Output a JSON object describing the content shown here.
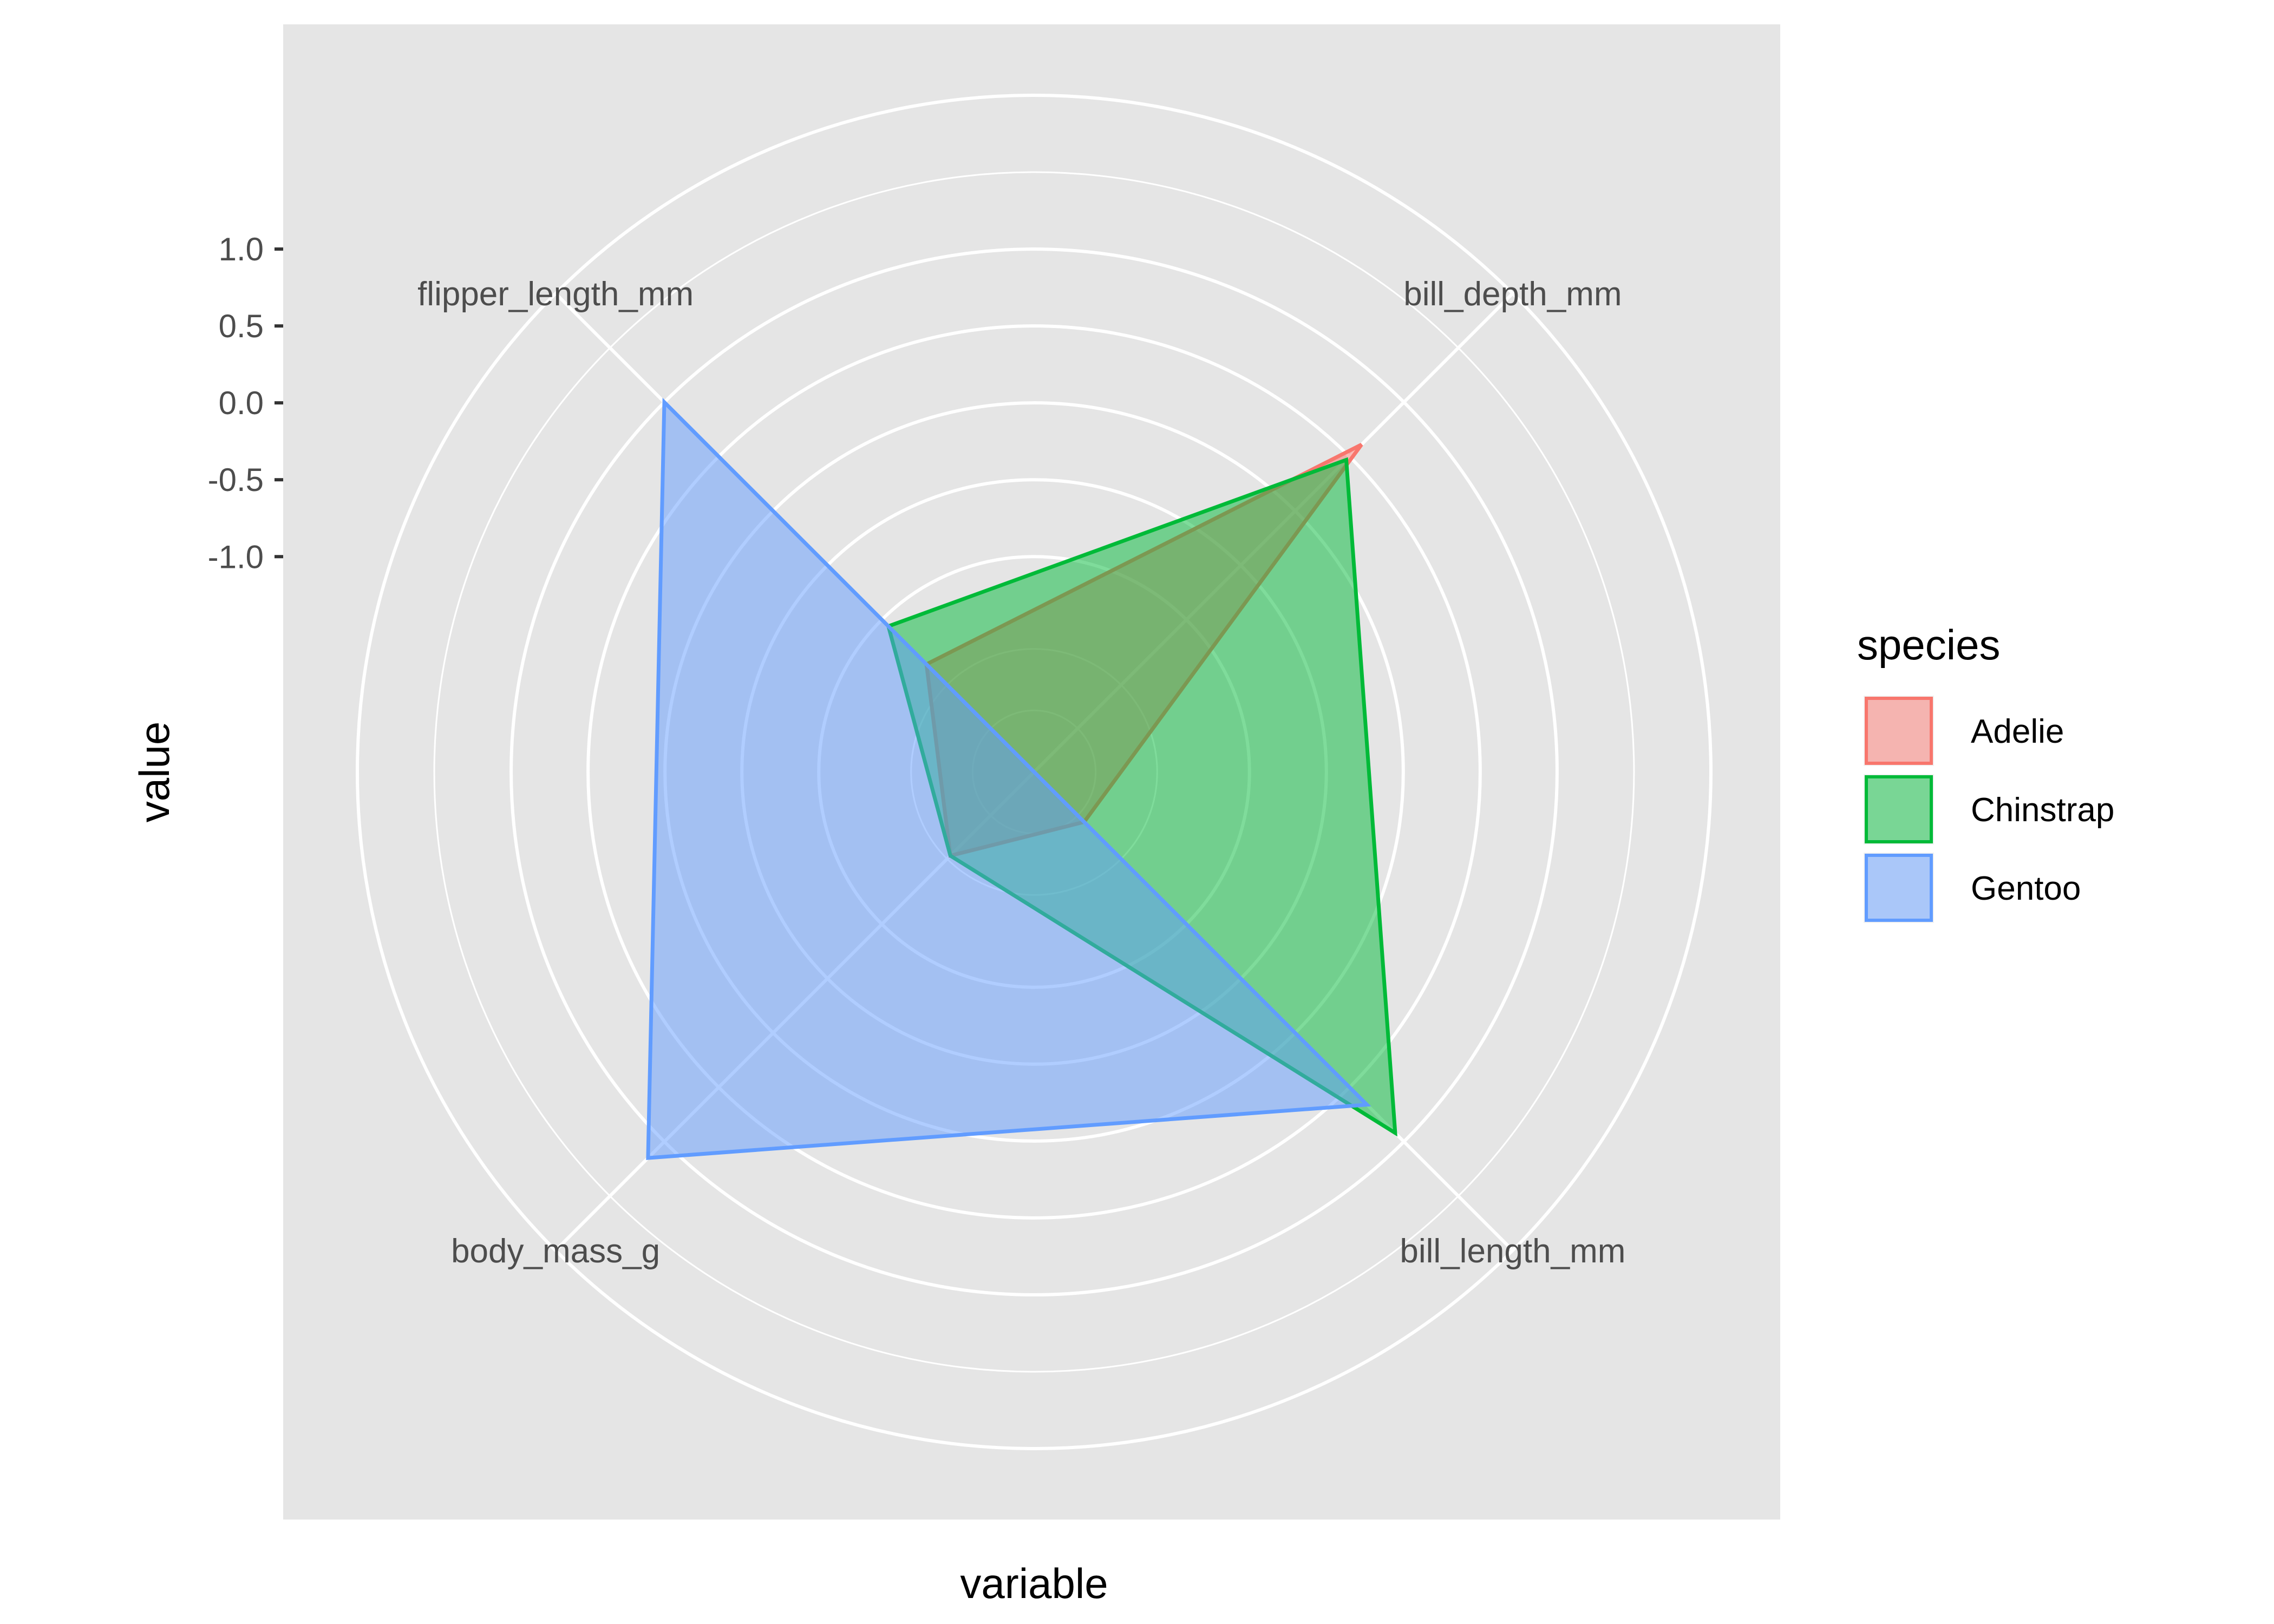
{
  "chart_data": {
    "type": "radar",
    "xlabel": "variable",
    "ylabel": "value",
    "categories": [
      "bill_depth_mm",
      "bill_length_mm",
      "body_mass_g",
      "flipper_length_mm"
    ],
    "r_range": [
      -2.4,
      2.0
    ],
    "r_ticks": [
      -1.0,
      -0.5,
      0.0,
      0.5,
      1.0
    ],
    "r_tick_labels": [
      "-1.0",
      "-0.5",
      "0.0",
      "0.5",
      "1.0"
    ],
    "grid_rings": [
      -2.0,
      -1.6,
      -1.0,
      -0.5,
      0.0,
      0.5,
      1.0,
      1.5
    ],
    "grid": true,
    "legend": {
      "title": "species",
      "position": "right"
    },
    "series": [
      {
        "name": "Adelie",
        "color": "#F8766D",
        "values": [
          0.61,
          -1.94,
          -1.63,
          -1.41
        ]
      },
      {
        "name": "Chinstrap",
        "color": "#00BA38",
        "values": [
          0.47,
          0.92,
          -1.63,
          -1.06
        ]
      },
      {
        "name": "Gentoo",
        "color": "#619CFF",
        "values": [
          -2.4,
          0.66,
          1.15,
          1.0
        ]
      }
    ]
  }
}
